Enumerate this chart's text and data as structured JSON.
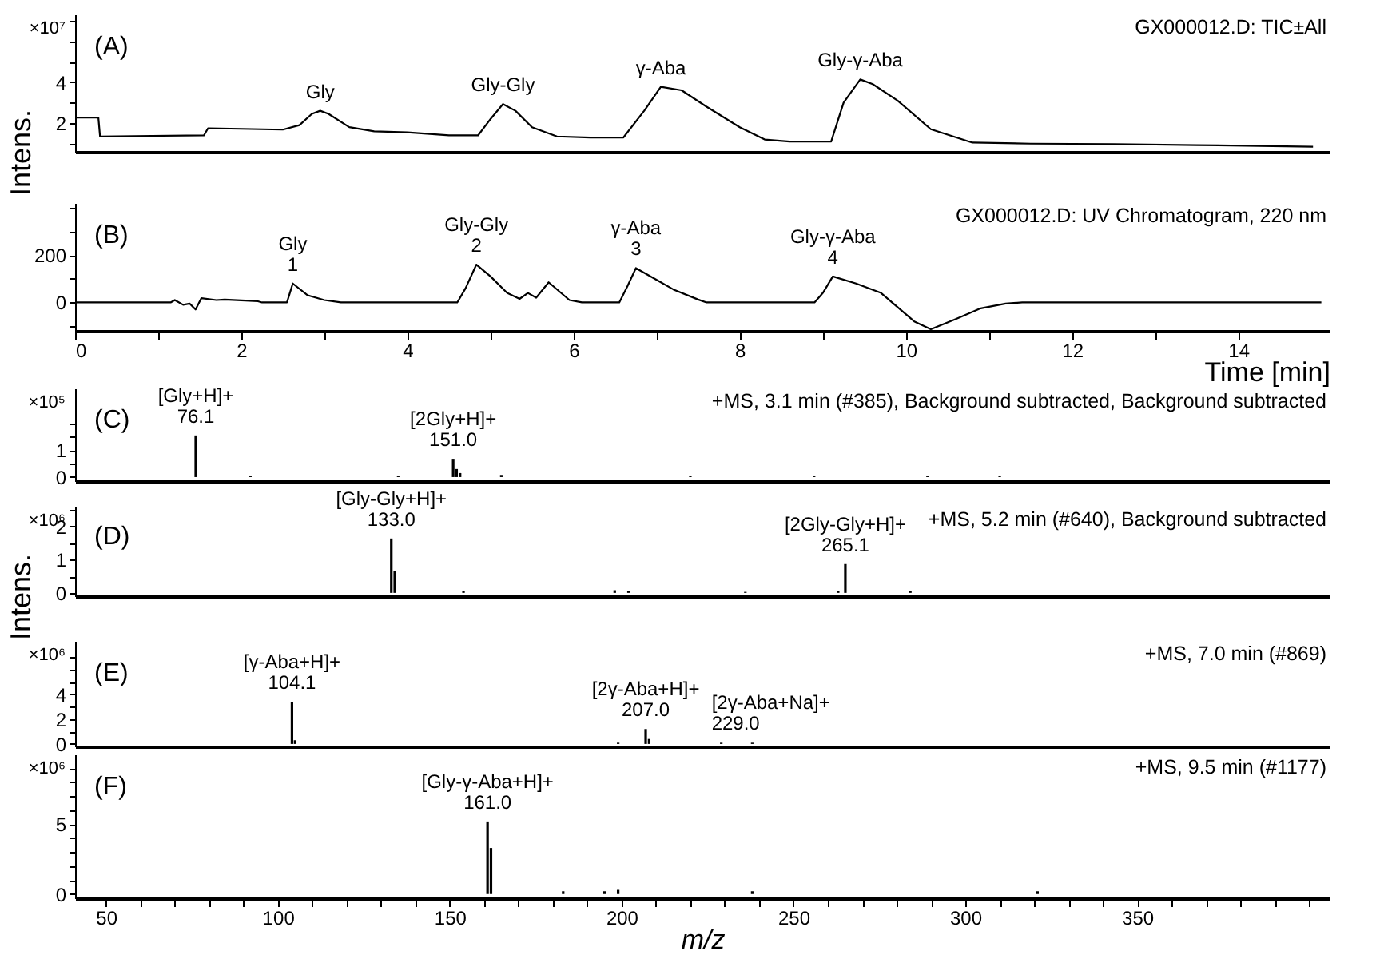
{
  "chart_data": [
    {
      "type": "line",
      "title": "(A)",
      "subtitle": "GX000012.D: TIC±All",
      "ylabel": "Intens.",
      "tick_labels": "y",
      "xlim": [
        0,
        15.1
      ],
      "ylim": [
        0.6,
        7.3
      ],
      "yticks": [
        {
          "value": 1,
          "label": null
        },
        2,
        {
          "value": 3,
          "label": null
        },
        4,
        {
          "value": 5,
          "label": null
        },
        {
          "value": 6,
          "label": null
        },
        {
          "value": 7,
          "label": null
        }
      ],
      "x": [
        0,
        0.28,
        0.3,
        1.55,
        1.6,
        2.0,
        2.5,
        2.7,
        2.85,
        2.95,
        3.05,
        3.3,
        3.6,
        4.0,
        4.5,
        4.85,
        5.0,
        5.15,
        5.3,
        5.5,
        5.8,
        6.2,
        6.6,
        6.85,
        7.05,
        7.3,
        7.6,
        8.0,
        8.3,
        8.6,
        9.1,
        9.25,
        9.45,
        9.6,
        9.9,
        10.3,
        10.8,
        11.5,
        12.5,
        13.5,
        14.9
      ],
      "series": [
        {
          "color": "#000000",
          "values": [
            2.27,
            2.27,
            1.35,
            1.4,
            1.75,
            1.72,
            1.68,
            1.9,
            2.45,
            2.6,
            2.45,
            1.8,
            1.6,
            1.55,
            1.4,
            1.4,
            2.2,
            2.93,
            2.6,
            1.8,
            1.35,
            1.3,
            1.3,
            2.6,
            3.77,
            3.6,
            2.8,
            1.8,
            1.2,
            1.1,
            1.1,
            3.0,
            4.13,
            3.9,
            3.1,
            1.7,
            1.05,
            1.0,
            0.98,
            0.93,
            0.85
          ]
        }
      ],
      "annotations": [
        "×10⁷",
        {
          "text": "Gly",
          "x": 2.95,
          "y": 2.6
        },
        {
          "text": "Gly-Gly",
          "x": 5.15,
          "y": 2.93
        },
        {
          "text": "γ-Aba",
          "x": 7.05,
          "y": 3.77
        },
        {
          "text": "Gly-γ-Aba",
          "x": 9.45,
          "y": 4.13
        }
      ]
    },
    {
      "type": "line",
      "subtitle": "GX000012.D: UV Chromatogram, 220 nm",
      "title": "(B)",
      "xlabel": "Time [min]",
      "xlim": [
        0,
        15.1
      ],
      "ylim": [
        -120,
        420
      ],
      "xticks": [
        0,
        {
          "value": 1,
          "label": null
        },
        2,
        {
          "value": 3,
          "label": null
        },
        4,
        {
          "value": 5,
          "label": null
        },
        6,
        {
          "value": 7,
          "label": null
        },
        8,
        {
          "value": 9,
          "label": null
        },
        10,
        {
          "value": 11,
          "label": null
        },
        12,
        {
          "value": 13,
          "label": null
        },
        14
      ],
      "yticks": [
        {
          "value": -100,
          "label": null
        },
        0,
        {
          "value": 100,
          "label": null
        },
        200,
        {
          "value": 300,
          "label": null
        },
        {
          "value": 400,
          "label": null
        }
      ],
      "x": [
        0,
        1.15,
        1.2,
        1.3,
        1.38,
        1.45,
        1.52,
        1.7,
        1.8,
        2.2,
        2.25,
        2.55,
        2.62,
        2.8,
        3.0,
        3.2,
        4.6,
        4.7,
        4.83,
        5.0,
        5.2,
        5.35,
        5.45,
        5.55,
        5.7,
        5.95,
        6.1,
        6.55,
        6.65,
        6.75,
        7.0,
        7.2,
        7.5,
        7.6,
        8.9,
        9.0,
        9.12,
        9.4,
        9.7,
        9.9,
        10.1,
        10.3,
        10.6,
        10.9,
        11.2,
        11.4,
        15.0
      ],
      "series": [
        {
          "color": "#000000",
          "values": [
            0,
            0,
            10,
            -10,
            -5,
            -30,
            18,
            10,
            12,
            5,
            0,
            0,
            80,
            30,
            10,
            0,
            0,
            60,
            160,
            110,
            40,
            15,
            40,
            20,
            85,
            10,
            0,
            0,
            70,
            145,
            95,
            55,
            12,
            0,
            0,
            40,
            110,
            80,
            40,
            -20,
            -80,
            -113,
            -70,
            -25,
            -5,
            0,
            0
          ]
        }
      ],
      "annotations": [
        {
          "text": "Gly\n1",
          "x": 2.62,
          "y": 80
        },
        {
          "text": "Gly-Gly\n2",
          "x": 4.83,
          "y": 160
        },
        {
          "text": "γ-Aba\n3",
          "x": 6.75,
          "y": 145
        },
        {
          "text": "Gly-γ-Aba\n4",
          "x": 9.12,
          "y": 110
        }
      ]
    },
    {
      "type": "bar",
      "title": "(C)",
      "subtitle": "+MS, 3.1 min (#385), Background subtracted, Background subtracted",
      "tick_labels": "y",
      "xlim": [
        41,
        406
      ],
      "ylim": [
        -0.15,
        3.3
      ],
      "yticks": [
        0,
        {
          "value": 0.5,
          "label": null
        },
        1,
        {
          "value": 1.5,
          "label": null
        },
        {
          "value": 2,
          "label": null
        }
      ],
      "x": [
        76.1,
        92,
        135,
        151.0,
        152,
        153,
        165,
        220,
        256,
        289,
        310
      ],
      "series": [
        {
          "color": "#000000",
          "values": [
            1.55,
            0.05,
            0.05,
            0.68,
            0.3,
            0.15,
            0.08,
            0.04,
            0.05,
            0.04,
            0.04
          ]
        }
      ],
      "annotations": [
        "×10⁵",
        {
          "text": "[Gly+H]+\n76.1",
          "x": 76.1,
          "y": 1.55
        },
        {
          "text": "[2Gly+H]+\n151.0",
          "x": 151.0,
          "y": 0.68
        }
      ]
    },
    {
      "type": "bar",
      "title": "(D)",
      "subtitle": "+MS, 5.2 min (#640), Background subtracted",
      "ylabel": "Intens.",
      "tick_labels": "y",
      "xlim": [
        41,
        406
      ],
      "ylim": [
        -0.1,
        2.6
      ],
      "yticks": [
        0,
        {
          "value": 0.5,
          "label": null
        },
        1,
        {
          "value": 1.5,
          "label": null
        },
        2,
        {
          "value": 2.5,
          "label": null
        }
      ],
      "x": [
        133.0,
        134,
        154,
        198,
        202,
        236,
        263,
        265.1,
        284
      ],
      "series": [
        {
          "color": "#000000",
          "values": [
            1.64,
            0.67,
            0.05,
            0.08,
            0.05,
            0.03,
            0.05,
            0.87,
            0.05
          ]
        }
      ],
      "annotations": [
        "×10⁶",
        {
          "text": "[Gly-Gly+H]+\n133.0",
          "x": 133.0,
          "y": 1.64
        },
        {
          "text": "[2Gly-Gly+H]+\n265.1",
          "x": 265.1,
          "y": 0.87
        }
      ]
    },
    {
      "type": "bar",
      "title": "(E)",
      "subtitle": "+MS, 7.0 min (#869)",
      "tick_labels": "y",
      "xlim": [
        41,
        406
      ],
      "ylim": [
        -0.2,
        8.3
      ],
      "yticks": [
        0,
        {
          "value": 1,
          "label": null
        },
        2,
        {
          "value": 3,
          "label": null
        },
        4,
        {
          "value": 5,
          "label": null
        },
        {
          "value": 6,
          "label": null
        },
        {
          "value": 7,
          "label": null
        }
      ],
      "x": [
        104.1,
        105,
        199,
        207.0,
        208,
        229.0,
        238
      ],
      "series": [
        {
          "color": "#000000",
          "values": [
            3.4,
            0.3,
            0.1,
            1.2,
            0.4,
            0.1,
            0.1
          ]
        }
      ],
      "annotations": [
        "×10⁶",
        {
          "text": "[γ-Aba+H]+\n104.1",
          "x": 104.1,
          "y": 3.4
        },
        {
          "text": "[2γ-Aba+H]+\n207.0",
          "x": 207.0,
          "y": 1.2
        },
        {
          "text": "[2γ-Aba+Na]+\n229.0",
          "x": 229.0,
          "y": 0.1
        }
      ]
    },
    {
      "type": "bar",
      "title": "(F)",
      "subtitle": "+MS, 9.5 min (#1177)",
      "xlabel": "m/z",
      "xlim": [
        41,
        406
      ],
      "ylim": [
        -0.3,
        10
      ],
      "xticks": [
        50,
        {
          "value": 60,
          "label": null
        },
        {
          "value": 70,
          "label": null
        },
        {
          "value": 80,
          "label": null
        },
        {
          "value": 90,
          "label": null
        },
        100,
        {
          "value": 110,
          "label": null
        },
        {
          "value": 120,
          "label": null
        },
        {
          "value": 130,
          "label": null
        },
        {
          "value": 140,
          "label": null
        },
        150,
        {
          "value": 160,
          "label": null
        },
        {
          "value": 170,
          "label": null
        },
        {
          "value": 180,
          "label": null
        },
        {
          "value": 190,
          "label": null
        },
        200,
        {
          "value": 210,
          "label": null
        },
        {
          "value": 220,
          "label": null
        },
        {
          "value": 230,
          "label": null
        },
        {
          "value": 240,
          "label": null
        },
        250,
        {
          "value": 260,
          "label": null
        },
        {
          "value": 270,
          "label": null
        },
        {
          "value": 280,
          "label": null
        },
        {
          "value": 290,
          "label": null
        },
        300,
        {
          "value": 310,
          "label": null
        },
        {
          "value": 320,
          "label": null
        },
        {
          "value": 330,
          "label": null
        },
        {
          "value": 340,
          "label": null
        },
        350,
        {
          "value": 360,
          "label": null
        },
        {
          "value": 370,
          "label": null
        },
        {
          "value": 380,
          "label": null
        },
        {
          "value": 390,
          "label": null
        },
        {
          "value": 400,
          "label": null
        }
      ],
      "yticks": [
        0,
        {
          "value": 1,
          "label": null
        },
        {
          "value": 2,
          "label": null
        },
        {
          "value": 3,
          "label": null
        },
        {
          "value": 4,
          "label": null
        },
        5,
        {
          "value": 6,
          "label": null
        },
        {
          "value": 7,
          "label": null
        },
        {
          "value": 8,
          "label": null
        },
        {
          "value": 9,
          "label": null
        }
      ],
      "x": [
        161.0,
        162,
        183,
        195,
        199,
        238,
        321
      ],
      "series": [
        {
          "color": "#000000",
          "values": [
            5.2,
            3.3,
            0.2,
            0.2,
            0.3,
            0.2,
            0.2
          ]
        }
      ],
      "annotations": [
        "×10⁶",
        {
          "text": "[Gly-γ-Aba+H]+\n161.0",
          "x": 161.0,
          "y": 5.2
        }
      ]
    }
  ]
}
